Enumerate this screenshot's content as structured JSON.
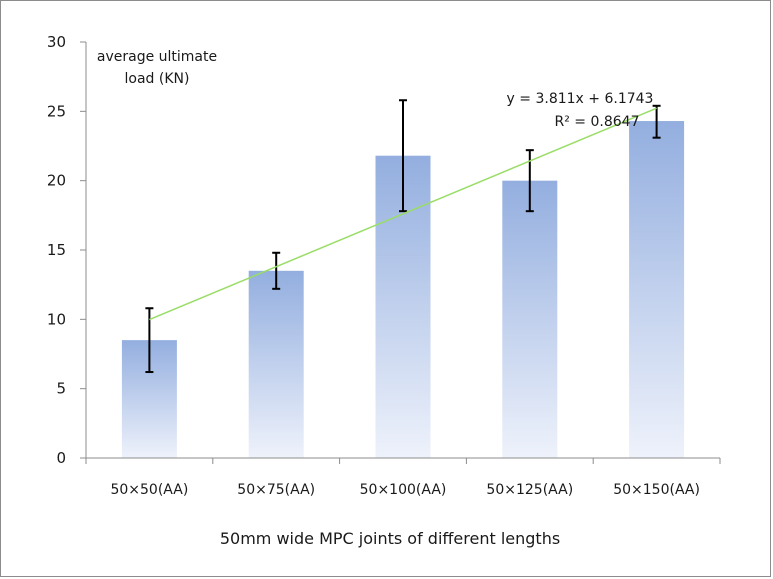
{
  "chart_data": {
    "type": "bar",
    "title": "",
    "xlabel": "50mm wide MPC joints of different lengths",
    "ylabel": "",
    "annotation_ylabel": [
      "average ultimate",
      "load (KN)"
    ],
    "categories": [
      "50×50(AA)",
      "50×75(AA)",
      "50×100(AA)",
      "50×125(AA)",
      "50×150(AA)"
    ],
    "series": [
      {
        "values": [
          8.5,
          13.5,
          21.8,
          20.0,
          24.3
        ],
        "error_low": [
          6.2,
          12.2,
          17.8,
          17.8,
          23.1
        ],
        "error_high": [
          10.8,
          14.8,
          25.8,
          22.2,
          25.4
        ]
      }
    ],
    "trendline": {
      "type": "linear",
      "slope": 3.811,
      "intercept": 6.1743,
      "equation_label": "y = 3.811x + 6.1743",
      "r2_label": "R² = 0.8647",
      "color": "#99dd66"
    },
    "ylim": [
      0,
      30
    ],
    "yticks": [
      0,
      5,
      10,
      15,
      20,
      25,
      30
    ],
    "grid": false,
    "legend": "none",
    "colors": {
      "bar_top": "#93aedf",
      "bar_bottom": "#eef2fb",
      "error_bar": "#000000",
      "axis": "#8c8c8c"
    }
  }
}
